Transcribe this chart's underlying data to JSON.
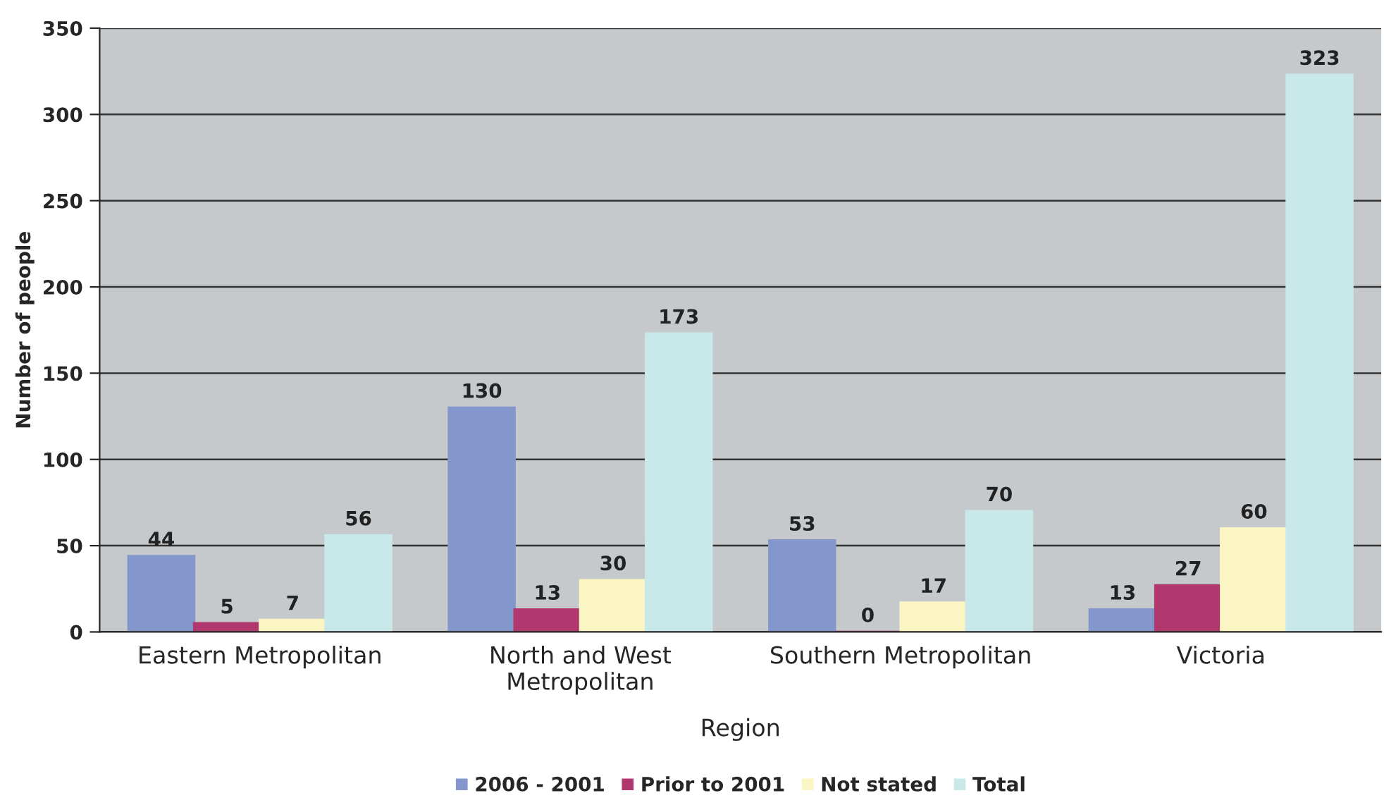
{
  "chart_data": {
    "type": "bar",
    "xlabel": "Region",
    "ylabel": "Number of people",
    "categories": [
      "Eastern Metropolitan",
      "North and West\nMetropolitan",
      "Southern Metropolitan",
      "Victoria"
    ],
    "series": [
      {
        "name": "2006 - 2001",
        "color": "#8497cc",
        "values": [
          44,
          130,
          53,
          13
        ]
      },
      {
        "name": "Prior to 2001",
        "color": "#b0386e",
        "values": [
          5,
          13,
          0,
          27
        ]
      },
      {
        "name": "Not stated",
        "color": "#fbf5c4",
        "values": [
          7,
          30,
          17,
          60
        ]
      },
      {
        "name": "Total",
        "color": "#c8e8ea",
        "values": [
          56,
          173,
          70,
          323
        ]
      }
    ],
    "ylim": [
      0,
      350
    ],
    "yticks": [
      0,
      50,
      100,
      150,
      200,
      250,
      300,
      350
    ],
    "grid": "y",
    "legend": "bottom",
    "data_labels": true
  }
}
